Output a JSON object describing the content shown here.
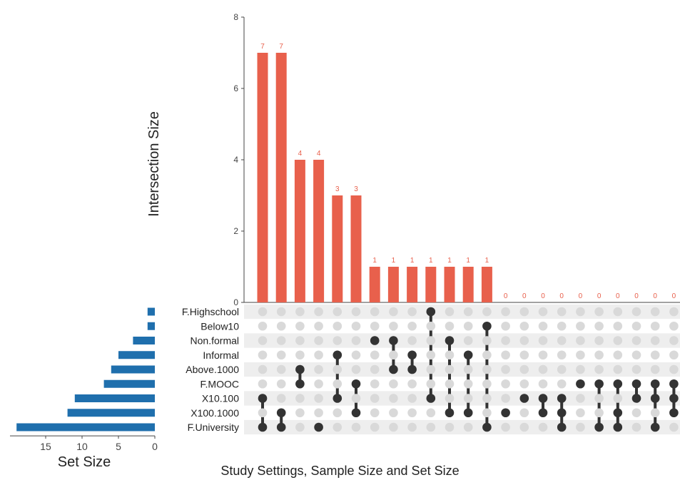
{
  "chart_data": {
    "type": "upset",
    "caption": "Study Settings, Sample Size and Set Size",
    "intersection_axis": {
      "label": "Intersection Size",
      "ylim": [
        0,
        8
      ],
      "ticks": [
        0,
        2,
        4,
        6,
        8
      ]
    },
    "set_size_axis": {
      "label": "Set Size",
      "ticks": [
        15,
        10,
        5,
        0
      ]
    },
    "colors": {
      "bars": "#e8604c",
      "set_bars": "#1f6fad",
      "dot_active": "#333333",
      "dot_inactive": "#d9d9d9",
      "stripe": "#eeeeee",
      "bar_label": "#e8604c"
    },
    "sets": [
      {
        "name": "F.Highschool",
        "size": 1
      },
      {
        "name": "Below10",
        "size": 1
      },
      {
        "name": "Non.formal",
        "size": 3
      },
      {
        "name": "Informal",
        "size": 5
      },
      {
        "name": "Above.1000",
        "size": 6
      },
      {
        "name": "F.MOOC",
        "size": 7
      },
      {
        "name": "X10.100",
        "size": 11
      },
      {
        "name": "X100.1000",
        "size": 12
      },
      {
        "name": "F.University",
        "size": 19
      }
    ],
    "intersections": [
      {
        "size": 7,
        "label": "7",
        "sets": [
          "X10.100",
          "F.University"
        ]
      },
      {
        "size": 7,
        "label": "7",
        "sets": [
          "X100.1000",
          "F.University"
        ]
      },
      {
        "size": 4,
        "label": "4",
        "sets": [
          "Above.1000",
          "F.MOOC"
        ]
      },
      {
        "size": 4,
        "label": "4",
        "sets": [
          "F.University"
        ]
      },
      {
        "size": 3,
        "label": "3",
        "sets": [
          "Informal",
          "X10.100"
        ]
      },
      {
        "size": 3,
        "label": "3",
        "sets": [
          "F.MOOC",
          "X100.1000"
        ]
      },
      {
        "size": 1,
        "label": "1",
        "sets": [
          "Non.formal"
        ]
      },
      {
        "size": 1,
        "label": "1",
        "sets": [
          "Non.formal",
          "Above.1000"
        ]
      },
      {
        "size": 1,
        "label": "1",
        "sets": [
          "Informal",
          "Above.1000"
        ]
      },
      {
        "size": 1,
        "label": "1",
        "sets": [
          "F.Highschool",
          "X10.100"
        ]
      },
      {
        "size": 1,
        "label": "1",
        "sets": [
          "Non.formal",
          "X100.1000"
        ]
      },
      {
        "size": 1,
        "label": "1",
        "sets": [
          "Informal",
          "X100.1000"
        ]
      },
      {
        "size": 1,
        "label": "1",
        "sets": [
          "Below10",
          "F.University"
        ]
      },
      {
        "size": 0,
        "label": "0",
        "sets": [
          "X100.1000"
        ]
      },
      {
        "size": 0,
        "label": "0",
        "sets": [
          "X10.100"
        ]
      },
      {
        "size": 0,
        "label": "0",
        "sets": [
          "X10.100",
          "X100.1000"
        ]
      },
      {
        "size": 0,
        "label": "0",
        "sets": [
          "X10.100",
          "X100.1000",
          "F.University"
        ]
      },
      {
        "size": 0,
        "label": "0",
        "sets": [
          "F.MOOC"
        ]
      },
      {
        "size": 0,
        "label": "0",
        "sets": [
          "F.MOOC",
          "F.University"
        ]
      },
      {
        "size": 0,
        "label": "0",
        "sets": [
          "F.MOOC",
          "X100.1000",
          "F.University"
        ]
      },
      {
        "size": 0,
        "label": "0",
        "sets": [
          "F.MOOC",
          "X10.100"
        ]
      },
      {
        "size": 0,
        "label": "0",
        "sets": [
          "F.MOOC",
          "X10.100",
          "F.University"
        ]
      },
      {
        "size": 0,
        "label": "0",
        "sets": [
          "F.MOOC",
          "X10.100",
          "X100.1000"
        ]
      }
    ]
  }
}
